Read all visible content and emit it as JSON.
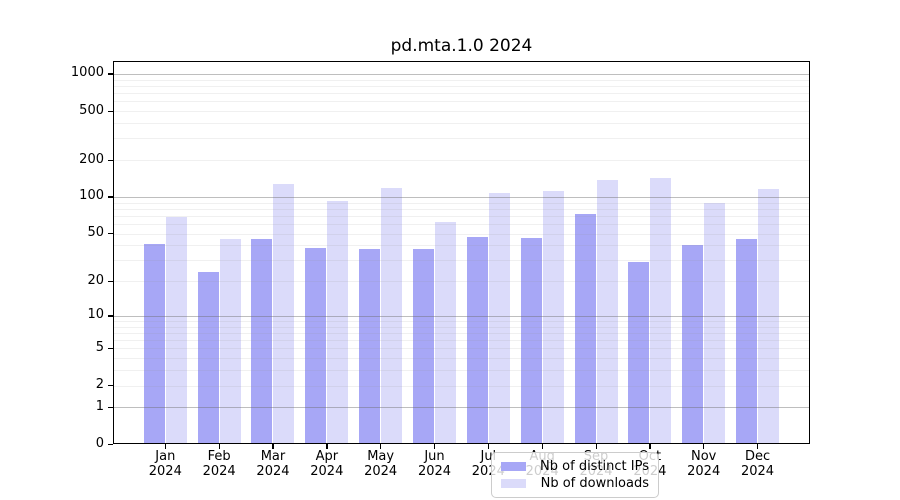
{
  "figure": {
    "background": "#ffffff"
  },
  "chart_data": {
    "type": "bar",
    "title": "pd.mta.1.0 2024",
    "categories": [
      "Jan 2024",
      "Feb 2024",
      "Mar 2024",
      "Apr 2024",
      "May 2024",
      "Jun 2024",
      "Jul 2024",
      "Aug 2024",
      "Sep 2024",
      "Oct 2024",
      "Nov 2024",
      "Dec 2024"
    ],
    "series": [
      {
        "name": "Nb of distinct IPs",
        "color": "#a7a7f6",
        "values": [
          41,
          24,
          45,
          38,
          37,
          37,
          47,
          46,
          73,
          29,
          40,
          45
        ]
      },
      {
        "name": "Nb of downloads",
        "color": "#dbdbfa",
        "values": [
          68,
          45,
          128,
          93,
          119,
          62,
          107,
          112,
          138,
          142,
          90,
          116
        ]
      }
    ],
    "xlabel": "",
    "ylabel": "",
    "yscale": "log1p (y proportional to log10(1+value))",
    "yticks": [
      0,
      1,
      2,
      5,
      10,
      20,
      50,
      100,
      200,
      500,
      1000
    ],
    "ylim": [
      0,
      1270
    ],
    "grid": "on (major lines at 1,10,100,1000; faint minor lines at 2-9 multiples; drawn over bars)",
    "legend_position": "lower center inside plot"
  },
  "colors": {
    "bar_distinct_ips": "#a7a7f6",
    "bar_downloads": "#dbdbfa",
    "grid_major": "#9a9a9a",
    "grid_minor": "#ededed",
    "axis_line": "#000000",
    "text": "#000000",
    "legend_background": "rgba(255,255,255,0.8)",
    "legend_border": "#cccccc"
  }
}
